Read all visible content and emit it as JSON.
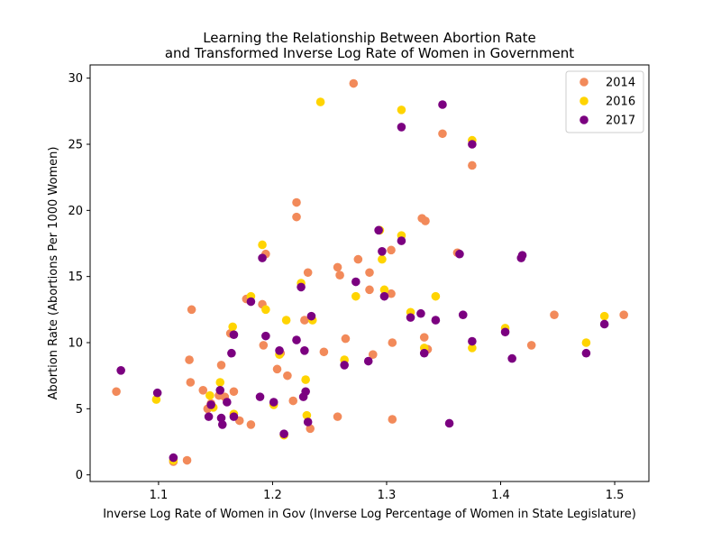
{
  "chart_data": {
    "type": "scatter",
    "title_line1": "Learning the Relationship Between Abortion Rate",
    "title_line2": "and Transformed Inverse Log Rate of Women in Government",
    "xlabel": "Inverse Log Rate of Women in Gov (Inverse Log Percentage of Women in State Legislature)",
    "ylabel": "Abortion Rate (Abortions Per 1000 Women)",
    "xlim": [
      1.04,
      1.53
    ],
    "ylim": [
      -0.5,
      31
    ],
    "xticks": [
      1.1,
      1.2,
      1.3,
      1.4,
      1.5
    ],
    "xtick_labels": [
      "1.1",
      "1.2",
      "1.3",
      "1.4",
      "1.5"
    ],
    "yticks": [
      0,
      5,
      10,
      15,
      20,
      25,
      30
    ],
    "ytick_labels": [
      "0",
      "5",
      "10",
      "15",
      "20",
      "25",
      "30"
    ],
    "grid": false,
    "legend_position": "top-right",
    "series": [
      {
        "name": "2014",
        "color": "#f28a5a",
        "points": [
          [
            1.063,
            6.3
          ],
          [
            1.113,
            1.0
          ],
          [
            1.125,
            1.1
          ],
          [
            1.127,
            8.7
          ],
          [
            1.128,
            7.0
          ],
          [
            1.129,
            12.5
          ],
          [
            1.139,
            6.4
          ],
          [
            1.143,
            5.0
          ],
          [
            1.146,
            5.4
          ],
          [
            1.153,
            6.0
          ],
          [
            1.155,
            8.3
          ],
          [
            1.158,
            5.9
          ],
          [
            1.163,
            10.7
          ],
          [
            1.166,
            6.3
          ],
          [
            1.171,
            4.1
          ],
          [
            1.177,
            13.3
          ],
          [
            1.181,
            3.8
          ],
          [
            1.191,
            12.9
          ],
          [
            1.192,
            9.8
          ],
          [
            1.194,
            16.7
          ],
          [
            1.204,
            8.0
          ],
          [
            1.207,
            9.2
          ],
          [
            1.213,
            7.5
          ],
          [
            1.218,
            5.6
          ],
          [
            1.221,
            20.6
          ],
          [
            1.221,
            19.5
          ],
          [
            1.228,
            11.7
          ],
          [
            1.231,
            15.3
          ],
          [
            1.233,
            3.5
          ],
          [
            1.245,
            9.3
          ],
          [
            1.257,
            4.4
          ],
          [
            1.257,
            15.7
          ],
          [
            1.259,
            15.1
          ],
          [
            1.264,
            10.3
          ],
          [
            1.271,
            29.6
          ],
          [
            1.275,
            16.3
          ],
          [
            1.285,
            14.0
          ],
          [
            1.285,
            15.3
          ],
          [
            1.288,
            9.1
          ],
          [
            1.304,
            13.7
          ],
          [
            1.304,
            17.0
          ],
          [
            1.305,
            10.0
          ],
          [
            1.305,
            4.2
          ],
          [
            1.331,
            19.4
          ],
          [
            1.334,
            19.2
          ],
          [
            1.333,
            10.4
          ],
          [
            1.336,
            9.5
          ],
          [
            1.349,
            25.8
          ],
          [
            1.362,
            16.8
          ],
          [
            1.375,
            23.4
          ],
          [
            1.447,
            12.1
          ],
          [
            1.427,
            9.8
          ],
          [
            1.508,
            12.1
          ]
        ]
      },
      {
        "name": "2016",
        "color": "#ffd400",
        "points": [
          [
            1.098,
            5.7
          ],
          [
            1.113,
            1.1
          ],
          [
            1.145,
            6.0
          ],
          [
            1.148,
            5.1
          ],
          [
            1.154,
            7.0
          ],
          [
            1.165,
            11.2
          ],
          [
            1.166,
            4.6
          ],
          [
            1.181,
            13.5
          ],
          [
            1.191,
            17.4
          ],
          [
            1.194,
            12.5
          ],
          [
            1.201,
            5.3
          ],
          [
            1.206,
            9.1
          ],
          [
            1.212,
            11.7
          ],
          [
            1.21,
            3.0
          ],
          [
            1.225,
            14.5
          ],
          [
            1.229,
            7.2
          ],
          [
            1.23,
            4.5
          ],
          [
            1.235,
            11.7
          ],
          [
            1.242,
            28.2
          ],
          [
            1.263,
            8.7
          ],
          [
            1.273,
            13.5
          ],
          [
            1.294,
            18.5
          ],
          [
            1.296,
            16.3
          ],
          [
            1.298,
            14.0
          ],
          [
            1.313,
            27.6
          ],
          [
            1.313,
            18.1
          ],
          [
            1.321,
            12.3
          ],
          [
            1.333,
            9.6
          ],
          [
            1.343,
            13.5
          ],
          [
            1.375,
            25.3
          ],
          [
            1.375,
            9.6
          ],
          [
            1.404,
            11.1
          ],
          [
            1.475,
            10.0
          ],
          [
            1.491,
            12.0
          ]
        ]
      },
      {
        "name": "2017",
        "color": "#7b0080",
        "points": [
          [
            1.067,
            7.9
          ],
          [
            1.099,
            6.2
          ],
          [
            1.113,
            1.3
          ],
          [
            1.144,
            4.4
          ],
          [
            1.146,
            5.3
          ],
          [
            1.154,
            6.4
          ],
          [
            1.155,
            4.3
          ],
          [
            1.156,
            3.8
          ],
          [
            1.16,
            5.5
          ],
          [
            1.164,
            9.2
          ],
          [
            1.166,
            10.6
          ],
          [
            1.166,
            4.4
          ],
          [
            1.181,
            13.1
          ],
          [
            1.189,
            5.9
          ],
          [
            1.191,
            16.4
          ],
          [
            1.194,
            10.5
          ],
          [
            1.201,
            5.5
          ],
          [
            1.206,
            9.4
          ],
          [
            1.21,
            3.1
          ],
          [
            1.221,
            10.2
          ],
          [
            1.225,
            14.2
          ],
          [
            1.227,
            5.9
          ],
          [
            1.228,
            9.4
          ],
          [
            1.229,
            6.3
          ],
          [
            1.231,
            4.0
          ],
          [
            1.234,
            12.0
          ],
          [
            1.263,
            8.3
          ],
          [
            1.273,
            14.6
          ],
          [
            1.284,
            8.6
          ],
          [
            1.293,
            18.5
          ],
          [
            1.296,
            16.9
          ],
          [
            1.298,
            13.5
          ],
          [
            1.313,
            26.3
          ],
          [
            1.313,
            17.7
          ],
          [
            1.321,
            11.9
          ],
          [
            1.33,
            12.2
          ],
          [
            1.333,
            9.2
          ],
          [
            1.343,
            11.7
          ],
          [
            1.349,
            28.0
          ],
          [
            1.355,
            3.9
          ],
          [
            1.364,
            16.7
          ],
          [
            1.367,
            12.1
          ],
          [
            1.375,
            25.0
          ],
          [
            1.375,
            10.1
          ],
          [
            1.404,
            10.8
          ],
          [
            1.41,
            8.8
          ],
          [
            1.418,
            16.4
          ],
          [
            1.419,
            16.6
          ],
          [
            1.475,
            9.2
          ],
          [
            1.491,
            11.4
          ]
        ]
      }
    ]
  }
}
